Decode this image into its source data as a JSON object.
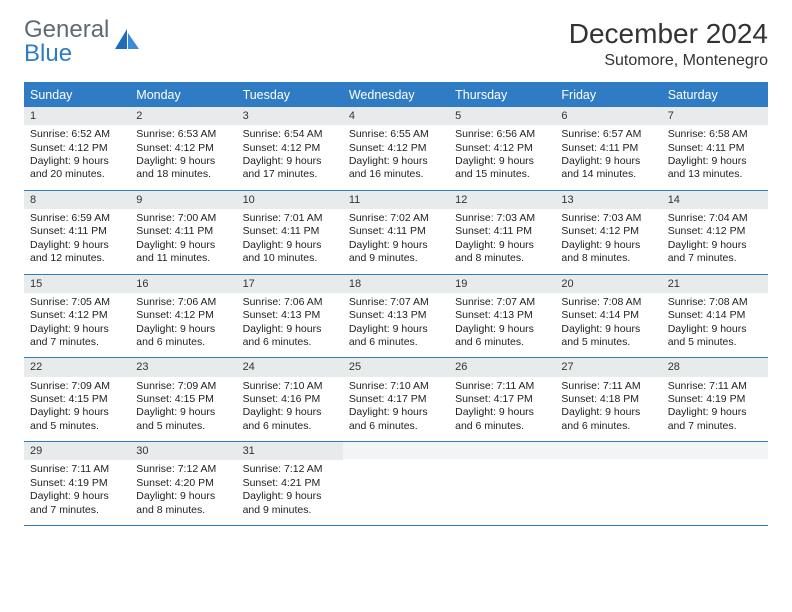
{
  "logo": {
    "line1": "General",
    "line2": "Blue"
  },
  "title": {
    "month": "December 2024",
    "location": "Sutomore, Montenegro"
  },
  "colors": {
    "accent": "#2f7cc4",
    "header_row_bg": "#2f7cc4",
    "header_row_text": "#ffffff",
    "day_num_bg": "#e8ebec",
    "text": "#222222",
    "logo_gray": "#5f6b73",
    "logo_blue": "#2f7cc4",
    "background": "#ffffff"
  },
  "typography": {
    "title_fontsize": 28,
    "location_fontsize": 16,
    "weekday_fontsize": 12.5,
    "daynum_fontsize": 11,
    "body_fontsize": 10.5,
    "font_family": "Arial"
  },
  "layout": {
    "columns": 7,
    "rows": 5,
    "cell_border_color": "#2f7cc4"
  },
  "weekdays": [
    "Sunday",
    "Monday",
    "Tuesday",
    "Wednesday",
    "Thursday",
    "Friday",
    "Saturday"
  ],
  "weeks": [
    [
      {
        "n": "1",
        "sunrise": "Sunrise: 6:52 AM",
        "sunset": "Sunset: 4:12 PM",
        "daylight": "Daylight: 9 hours and 20 minutes."
      },
      {
        "n": "2",
        "sunrise": "Sunrise: 6:53 AM",
        "sunset": "Sunset: 4:12 PM",
        "daylight": "Daylight: 9 hours and 18 minutes."
      },
      {
        "n": "3",
        "sunrise": "Sunrise: 6:54 AM",
        "sunset": "Sunset: 4:12 PM",
        "daylight": "Daylight: 9 hours and 17 minutes."
      },
      {
        "n": "4",
        "sunrise": "Sunrise: 6:55 AM",
        "sunset": "Sunset: 4:12 PM",
        "daylight": "Daylight: 9 hours and 16 minutes."
      },
      {
        "n": "5",
        "sunrise": "Sunrise: 6:56 AM",
        "sunset": "Sunset: 4:12 PM",
        "daylight": "Daylight: 9 hours and 15 minutes."
      },
      {
        "n": "6",
        "sunrise": "Sunrise: 6:57 AM",
        "sunset": "Sunset: 4:11 PM",
        "daylight": "Daylight: 9 hours and 14 minutes."
      },
      {
        "n": "7",
        "sunrise": "Sunrise: 6:58 AM",
        "sunset": "Sunset: 4:11 PM",
        "daylight": "Daylight: 9 hours and 13 minutes."
      }
    ],
    [
      {
        "n": "8",
        "sunrise": "Sunrise: 6:59 AM",
        "sunset": "Sunset: 4:11 PM",
        "daylight": "Daylight: 9 hours and 12 minutes."
      },
      {
        "n": "9",
        "sunrise": "Sunrise: 7:00 AM",
        "sunset": "Sunset: 4:11 PM",
        "daylight": "Daylight: 9 hours and 11 minutes."
      },
      {
        "n": "10",
        "sunrise": "Sunrise: 7:01 AM",
        "sunset": "Sunset: 4:11 PM",
        "daylight": "Daylight: 9 hours and 10 minutes."
      },
      {
        "n": "11",
        "sunrise": "Sunrise: 7:02 AM",
        "sunset": "Sunset: 4:11 PM",
        "daylight": "Daylight: 9 hours and 9 minutes."
      },
      {
        "n": "12",
        "sunrise": "Sunrise: 7:03 AM",
        "sunset": "Sunset: 4:11 PM",
        "daylight": "Daylight: 9 hours and 8 minutes."
      },
      {
        "n": "13",
        "sunrise": "Sunrise: 7:03 AM",
        "sunset": "Sunset: 4:12 PM",
        "daylight": "Daylight: 9 hours and 8 minutes."
      },
      {
        "n": "14",
        "sunrise": "Sunrise: 7:04 AM",
        "sunset": "Sunset: 4:12 PM",
        "daylight": "Daylight: 9 hours and 7 minutes."
      }
    ],
    [
      {
        "n": "15",
        "sunrise": "Sunrise: 7:05 AM",
        "sunset": "Sunset: 4:12 PM",
        "daylight": "Daylight: 9 hours and 7 minutes."
      },
      {
        "n": "16",
        "sunrise": "Sunrise: 7:06 AM",
        "sunset": "Sunset: 4:12 PM",
        "daylight": "Daylight: 9 hours and 6 minutes."
      },
      {
        "n": "17",
        "sunrise": "Sunrise: 7:06 AM",
        "sunset": "Sunset: 4:13 PM",
        "daylight": "Daylight: 9 hours and 6 minutes."
      },
      {
        "n": "18",
        "sunrise": "Sunrise: 7:07 AM",
        "sunset": "Sunset: 4:13 PM",
        "daylight": "Daylight: 9 hours and 6 minutes."
      },
      {
        "n": "19",
        "sunrise": "Sunrise: 7:07 AM",
        "sunset": "Sunset: 4:13 PM",
        "daylight": "Daylight: 9 hours and 6 minutes."
      },
      {
        "n": "20",
        "sunrise": "Sunrise: 7:08 AM",
        "sunset": "Sunset: 4:14 PM",
        "daylight": "Daylight: 9 hours and 5 minutes."
      },
      {
        "n": "21",
        "sunrise": "Sunrise: 7:08 AM",
        "sunset": "Sunset: 4:14 PM",
        "daylight": "Daylight: 9 hours and 5 minutes."
      }
    ],
    [
      {
        "n": "22",
        "sunrise": "Sunrise: 7:09 AM",
        "sunset": "Sunset: 4:15 PM",
        "daylight": "Daylight: 9 hours and 5 minutes."
      },
      {
        "n": "23",
        "sunrise": "Sunrise: 7:09 AM",
        "sunset": "Sunset: 4:15 PM",
        "daylight": "Daylight: 9 hours and 5 minutes."
      },
      {
        "n": "24",
        "sunrise": "Sunrise: 7:10 AM",
        "sunset": "Sunset: 4:16 PM",
        "daylight": "Daylight: 9 hours and 6 minutes."
      },
      {
        "n": "25",
        "sunrise": "Sunrise: 7:10 AM",
        "sunset": "Sunset: 4:17 PM",
        "daylight": "Daylight: 9 hours and 6 minutes."
      },
      {
        "n": "26",
        "sunrise": "Sunrise: 7:11 AM",
        "sunset": "Sunset: 4:17 PM",
        "daylight": "Daylight: 9 hours and 6 minutes."
      },
      {
        "n": "27",
        "sunrise": "Sunrise: 7:11 AM",
        "sunset": "Sunset: 4:18 PM",
        "daylight": "Daylight: 9 hours and 6 minutes."
      },
      {
        "n": "28",
        "sunrise": "Sunrise: 7:11 AM",
        "sunset": "Sunset: 4:19 PM",
        "daylight": "Daylight: 9 hours and 7 minutes."
      }
    ],
    [
      {
        "n": "29",
        "sunrise": "Sunrise: 7:11 AM",
        "sunset": "Sunset: 4:19 PM",
        "daylight": "Daylight: 9 hours and 7 minutes."
      },
      {
        "n": "30",
        "sunrise": "Sunrise: 7:12 AM",
        "sunset": "Sunset: 4:20 PM",
        "daylight": "Daylight: 9 hours and 8 minutes."
      },
      {
        "n": "31",
        "sunrise": "Sunrise: 7:12 AM",
        "sunset": "Sunset: 4:21 PM",
        "daylight": "Daylight: 9 hours and 9 minutes."
      },
      {
        "empty": true
      },
      {
        "empty": true
      },
      {
        "empty": true
      },
      {
        "empty": true
      }
    ]
  ]
}
